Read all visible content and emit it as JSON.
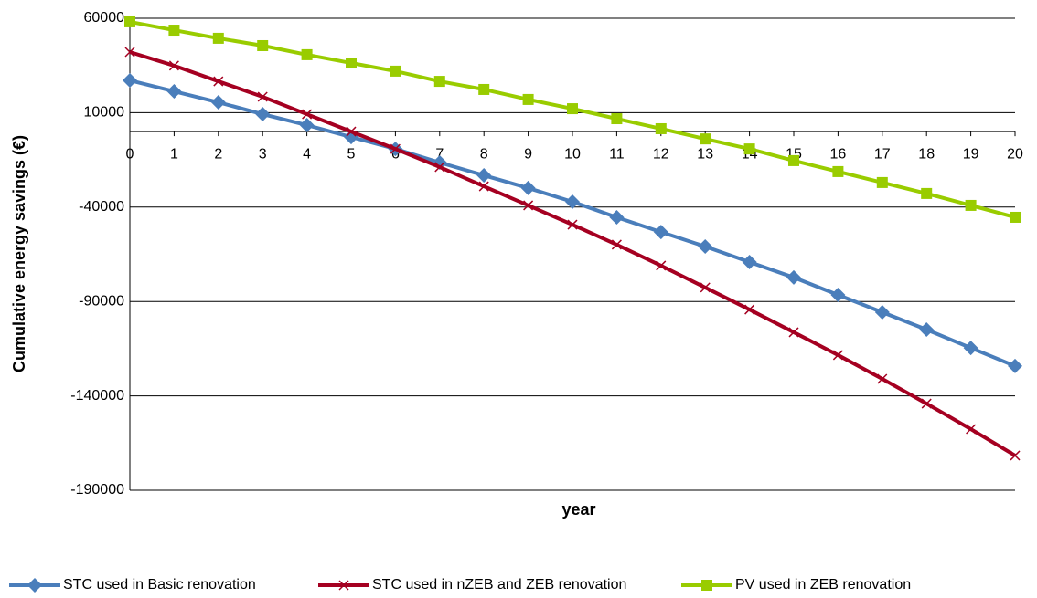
{
  "chart_data": {
    "type": "line",
    "x": [
      0,
      1,
      2,
      3,
      4,
      5,
      6,
      7,
      8,
      9,
      10,
      11,
      12,
      13,
      14,
      15,
      16,
      17,
      18,
      19,
      20
    ],
    "xlim": [
      0,
      20
    ],
    "xlabel": "year",
    "ylabel": "Cumulative energy savings (€)",
    "ylim": [
      -190000,
      60000
    ],
    "yticks": [
      -190000,
      -140000,
      -90000,
      -40000,
      10000,
      60000
    ],
    "grid": true,
    "legend": "bottom",
    "series": [
      {
        "name": "STC used in Basic renovation",
        "color": "#4a7ebb",
        "marker": "diamond",
        "values": [
          27100,
          21300,
          15500,
          9200,
          3400,
          -2900,
          -9200,
          -16400,
          -23200,
          -29900,
          -37200,
          -45400,
          -53200,
          -60900,
          -69100,
          -77300,
          -86500,
          -95700,
          -104900,
          -114600,
          -124200
        ]
      },
      {
        "name": "STC used in nZEB and ZEB renovation",
        "color": "#a50021",
        "marker": "x",
        "values": [
          42100,
          34900,
          26600,
          18400,
          9200,
          0,
          -9200,
          -18800,
          -29000,
          -39100,
          -49300,
          -59900,
          -71000,
          -82600,
          -94300,
          -106300,
          -118400,
          -131000,
          -144100,
          -157600,
          -171600
        ]
      },
      {
        "name": "PV used in ZEB renovation",
        "color": "#99cc00",
        "marker": "square",
        "values": [
          58100,
          53700,
          49400,
          45500,
          40700,
          36300,
          32000,
          26600,
          22300,
          17000,
          12100,
          6800,
          1500,
          -3900,
          -9200,
          -15400,
          -21200,
          -27000,
          -32800,
          -39100,
          -45400
        ]
      }
    ]
  }
}
